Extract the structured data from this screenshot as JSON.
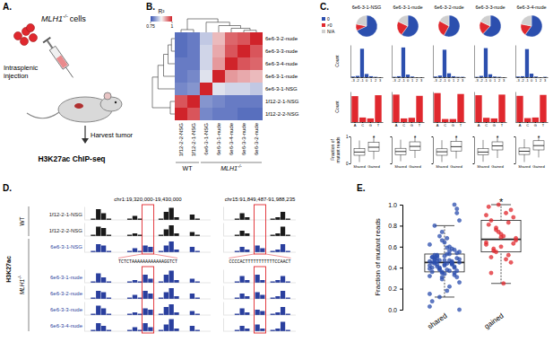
{
  "panel_labels": [
    "A.",
    "B.",
    "C.",
    "D.",
    "E."
  ],
  "diagram": {
    "gene": "MLH1",
    "genotype": "-/-",
    "cells": "cells",
    "injection": [
      "Intrasplenic",
      "injection"
    ],
    "harvest": "Harvest tumor",
    "assay": "H3K27ac ChIP-seq"
  },
  "chart_data": [
    {
      "type": "heatmap",
      "colorbar_title": "R²",
      "colorbar_range": [
        0.75,
        1
      ],
      "colorbar_ticks": [
        0.75,
        1
      ],
      "rows": [
        "6e6-3-2-nude",
        "6e6-3-3-nude",
        "6e6-3-4-nude",
        "6e6-3-1-nude",
        "6e6-3-1-NSG",
        "1f12-2-1-NSG",
        "1f12-2-2-NSG"
      ],
      "columns": [
        "1f12-2-2-NSG",
        "1f12-2-1-NSG",
        "6e6-3-1-NSG",
        "6e6-3-1-nude",
        "6e6-3-4-nude",
        "6e6-3-3-nude",
        "6e6-3-2-nude"
      ],
      "cells": [
        [
          0.77,
          0.78,
          0.84,
          0.91,
          0.96,
          0.97,
          1
        ],
        [
          0.77,
          0.78,
          0.85,
          0.92,
          0.97,
          1,
          0.97
        ],
        [
          0.78,
          0.78,
          0.85,
          0.93,
          1,
          0.97,
          0.96
        ],
        [
          0.78,
          0.79,
          0.86,
          1,
          0.93,
          0.92,
          0.91
        ],
        [
          0.79,
          0.8,
          1,
          0.86,
          0.85,
          0.85,
          0.84
        ],
        [
          0.97,
          1,
          0.8,
          0.79,
          0.78,
          0.78,
          0.78
        ],
        [
          1,
          0.97,
          0.79,
          0.78,
          0.78,
          0.77,
          0.77
        ]
      ],
      "groups": [
        {
          "label": "WT",
          "count": 2
        },
        {
          "label": "MLH1",
          "superscript": "-/-",
          "count": 5
        }
      ]
    },
    {
      "type": "grid",
      "samples": [
        "6e6-3-1-NSG",
        "6e6-3-1-nude",
        "6e6-3-2-nude",
        "6e6-3-3-nude",
        "6e6-3-4-nude"
      ],
      "pie": {
        "type": "pie",
        "categories": [
          "0",
          "≠0",
          "N/A"
        ],
        "colors": [
          "#2c4fae",
          "#e0282e",
          "#cfcfcf"
        ],
        "values": [
          [
            68,
            10,
            22
          ],
          [
            60,
            22,
            18
          ],
          [
            58,
            25,
            17
          ],
          [
            62,
            20,
            18
          ],
          [
            60,
            18,
            22
          ]
        ],
        "legend": "left"
      },
      "shift": {
        "type": "bar",
        "ylabel": "Count",
        "categories": [
          -3,
          -2,
          -1,
          0,
          1,
          2,
          3
        ],
        "values": [
          [
            2,
            4,
            88,
            10,
            3,
            1,
            0
          ],
          [
            1,
            3,
            92,
            8,
            2,
            0,
            0
          ],
          [
            2,
            5,
            85,
            12,
            3,
            1,
            1
          ],
          [
            1,
            4,
            90,
            9,
            2,
            1,
            0
          ],
          [
            2,
            3,
            87,
            11,
            2,
            0,
            1
          ]
        ],
        "color": "#2c4fae",
        "ylim": [
          0,
          100
        ],
        "tick_labels": "x"
      },
      "base": {
        "type": "bar",
        "ylabel": "Count",
        "categories": [
          "A",
          "C",
          "G",
          "T"
        ],
        "values": [
          [
            85,
            15,
            12,
            88
          ],
          [
            90,
            12,
            14,
            86
          ],
          [
            95,
            10,
            10,
            92
          ],
          [
            88,
            14,
            12,
            90
          ],
          [
            86,
            13,
            15,
            89
          ]
        ],
        "color": "#e0282e",
        "ylim": [
          0,
          100
        ],
        "tick_labels": "x"
      },
      "box": {
        "type": "box",
        "ylabel": [
          "Fraction of",
          "mutant reads"
        ],
        "categories": [
          "Shared",
          "Gained"
        ],
        "values": [
          [
            [
              0.05,
              0.3,
              0.42,
              0.55,
              0.85
            ],
            [
              0.15,
              0.45,
              0.6,
              0.78,
              1.0
            ]
          ],
          [
            [
              0.08,
              0.32,
              0.44,
              0.56,
              0.88
            ],
            [
              0.2,
              0.48,
              0.63,
              0.8,
              1.0
            ]
          ],
          [
            [
              0.05,
              0.3,
              0.43,
              0.54,
              0.86
            ],
            [
              0.18,
              0.46,
              0.62,
              0.82,
              1.0
            ]
          ],
          [
            [
              0.06,
              0.31,
              0.42,
              0.55,
              0.87
            ],
            [
              0.2,
              0.5,
              0.65,
              0.8,
              1.0
            ]
          ],
          [
            [
              0.05,
              0.33,
              0.45,
              0.57,
              0.9
            ],
            [
              0.22,
              0.5,
              0.66,
              0.84,
              1.0
            ]
          ]
        ],
        "ylim": [
          0,
          1
        ],
        "yticks": [
          0,
          1
        ],
        "annotation": "*",
        "color": "#222222"
      }
    },
    {
      "type": "tracks",
      "ylabel": "H3K27ac",
      "ylim": [
        0,
        10
      ],
      "tick_labels": false,
      "loci": [
        {
          "label": "chr1:19,320,000-19,430,000",
          "sequence": "TCTCTAAAAAAAAAAAAGGTCT",
          "highlight_bins": [
            11,
            12
          ]
        },
        {
          "label": "chr15:91,849,487-91,988,235",
          "sequence": "CCCCACTTTTTTTTTTTCCAACT",
          "highlight_bins": [
            6,
            7
          ]
        }
      ],
      "series": [
        {
          "name": "1f12-2-1-NSG",
          "color": "#1a1a1a",
          "values": [
            [
              0,
              1,
              8,
              5,
              1,
              0,
              0,
              0,
              1,
              3,
              1,
              0,
              0,
              0,
              1,
              6,
              9,
              2,
              0,
              0,
              4,
              1,
              0,
              0
            ],
            [
              0,
              0,
              1,
              5,
              2,
              0,
              0,
              0,
              0,
              1,
              2,
              6,
              1,
              0
            ]
          ]
        },
        {
          "name": "1f12-2-2-NSG",
          "color": "#1a1a1a",
          "values": [
            [
              0,
              1,
              7,
              6,
              1,
              0,
              0,
              0,
              1,
              2,
              1,
              0,
              0,
              0,
              1,
              5,
              8,
              2,
              0,
              0,
              3,
              1,
              0,
              0
            ],
            [
              0,
              0,
              1,
              4,
              2,
              0,
              0,
              0,
              0,
              1,
              2,
              7,
              1,
              0
            ]
          ]
        },
        {
          "name": "6e6-3-1-NSG",
          "color": "#2a3f9e",
          "values": [
            [
              0,
              1,
              6,
              5,
              1,
              0,
              0,
              0,
              1,
              3,
              1,
              5,
              4,
              0,
              1,
              5,
              8,
              2,
              0,
              0,
              4,
              1,
              0,
              0
            ],
            [
              0,
              0,
              1,
              4,
              2,
              0,
              5,
              3,
              0,
              1,
              2,
              6,
              1,
              0
            ]
          ]
        },
        {
          "name": "6e6-3-1-nude",
          "color": "#2a3f9e",
          "values": [
            [
              0,
              1,
              7,
              4,
              1,
              0,
              0,
              0,
              1,
              2,
              1,
              6,
              3,
              0,
              1,
              6,
              9,
              2,
              0,
              0,
              3,
              1,
              0,
              0
            ],
            [
              0,
              0,
              1,
              5,
              2,
              0,
              6,
              2,
              0,
              1,
              2,
              5,
              1,
              0
            ]
          ]
        },
        {
          "name": "6e6-3-2-nude",
          "color": "#2a3f9e",
          "values": [
            [
              0,
              1,
              6,
              5,
              1,
              0,
              0,
              0,
              1,
              3,
              1,
              6,
              4,
              0,
              1,
              5,
              8,
              2,
              0,
              0,
              4,
              1,
              0,
              0
            ],
            [
              0,
              0,
              1,
              4,
              2,
              0,
              5,
              3,
              0,
              1,
              2,
              6,
              1,
              0
            ]
          ]
        },
        {
          "name": "6e6-3-3-nude",
          "color": "#2a3f9e",
          "values": [
            [
              0,
              1,
              7,
              5,
              1,
              0,
              0,
              0,
              1,
              2,
              1,
              5,
              4,
              0,
              1,
              6,
              8,
              2,
              0,
              0,
              3,
              1,
              0,
              0
            ],
            [
              0,
              0,
              1,
              5,
              2,
              0,
              4,
              3,
              0,
              1,
              2,
              6,
              1,
              0
            ]
          ]
        },
        {
          "name": "6e6-3-4-nude",
          "color": "#2a3f9e",
          "values": [
            [
              0,
              1,
              6,
              4,
              1,
              0,
              0,
              0,
              1,
              3,
              1,
              6,
              3,
              0,
              1,
              5,
              9,
              2,
              0,
              0,
              4,
              1,
              0,
              0
            ],
            [
              0,
              0,
              1,
              4,
              2,
              0,
              5,
              2,
              0,
              1,
              2,
              7,
              1,
              0
            ]
          ]
        }
      ],
      "groups": [
        {
          "label": "WT",
          "count": 2
        },
        {
          "label": "MLH1",
          "superscript": "-/-",
          "count": 5
        }
      ]
    },
    {
      "type": "box",
      "ylabel": "Fraction of mutant reads",
      "categories": [
        "shared",
        "gained"
      ],
      "marker": "circle",
      "colors": [
        "#2c4fae",
        "#e0282e"
      ],
      "ylim": [
        0,
        1
      ],
      "yticks": [
        {
          "value": 0,
          "label": "0.0"
        },
        {
          "value": 0.2,
          "label": "0.2"
        },
        {
          "value": 0.4,
          "label": "0.4"
        },
        {
          "value": 0.6,
          "label": "0.6"
        },
        {
          "value": 0.8,
          "label": "0.8"
        },
        {
          "value": 1,
          "label": "1.0"
        }
      ],
      "boxes": [
        [
          0.12,
          0.36,
          0.45,
          0.53,
          0.8
        ],
        [
          0.25,
          0.55,
          0.67,
          0.85,
          1.0
        ]
      ],
      "points": [
        [
          0.42,
          0.45,
          0.38,
          0.51,
          0.47,
          0.33,
          0.55,
          0.4,
          0.49,
          0.36,
          0.44,
          0.58,
          0.31,
          0.46,
          0.52,
          0.39,
          0.43,
          0.6,
          0.35,
          0.48,
          0.5,
          0.41,
          0.29,
          0.53,
          0.45,
          0.37,
          0.62,
          0.44,
          0.47,
          0.34,
          0.56,
          0.4,
          0.26,
          0.5,
          0.43,
          0.66,
          0.38,
          0.46,
          0.54,
          0.32,
          0.48,
          0.7,
          0.42,
          0.22,
          0.57,
          0.45,
          0.36,
          0.51,
          0.74,
          0.18,
          0.44,
          0.49,
          0.39,
          0.8,
          0.12,
          0.47,
          0.53,
          0.41,
          0.85,
          0.08,
          0.46,
          0.35,
          0.59,
          0.43,
          0.92,
          0.03,
          0.5,
          0.4,
          0.64,
          0.37,
          1.0,
          0.0,
          0.45,
          0.52,
          0.31,
          0.68,
          0.44,
          0.96,
          0.15,
          0.48
        ],
        [
          0.62,
          0.85,
          0.55,
          0.72,
          0.48,
          0.95,
          0.66,
          0.81,
          0.58,
          1.0,
          0.7,
          0.52,
          0.88,
          0.64,
          0.35,
          0.78,
          0.6,
          0.92,
          0.45,
          0.68,
          0.98,
          0.56,
          0.74,
          0.25,
          0.83,
          0.63,
          0.9,
          0.5,
          0.76,
          0.69
        ]
      ],
      "annotation": "*"
    }
  ]
}
